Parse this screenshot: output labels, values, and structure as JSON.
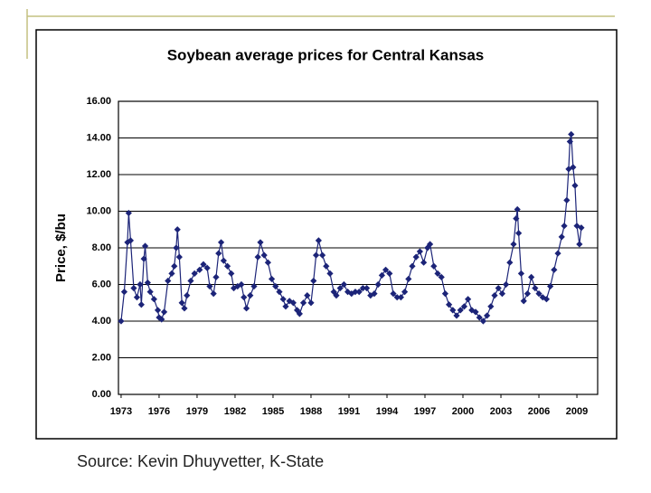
{
  "chart_data": {
    "type": "line",
    "title": "Soybean average prices for Central Kansas",
    "y_label": "Price, $/bu",
    "color": "#1c2478",
    "marker": "diamond",
    "grid": true,
    "x": [
      1973.0,
      1973.25,
      1973.5,
      1973.6,
      1973.75,
      1974.0,
      1974.25,
      1974.5,
      1974.6,
      1974.8,
      1974.9,
      1975.1,
      1975.3,
      1975.6,
      1975.9,
      1976.0,
      1976.2,
      1976.4,
      1976.7,
      1977.0,
      1977.2,
      1977.35,
      1977.45,
      1977.6,
      1977.8,
      1978.0,
      1978.2,
      1978.5,
      1978.8,
      1979.2,
      1979.5,
      1979.8,
      1980.0,
      1980.3,
      1980.5,
      1980.7,
      1980.9,
      1981.1,
      1981.4,
      1981.7,
      1981.9,
      1982.2,
      1982.5,
      1982.7,
      1982.9,
      1983.2,
      1983.5,
      1983.8,
      1984.0,
      1984.3,
      1984.6,
      1984.9,
      1985.2,
      1985.5,
      1985.8,
      1986.0,
      1986.3,
      1986.6,
      1986.9,
      1987.1,
      1987.4,
      1987.7,
      1988.0,
      1988.2,
      1988.4,
      1988.6,
      1988.9,
      1989.2,
      1989.5,
      1989.8,
      1990.0,
      1990.3,
      1990.6,
      1990.9,
      1991.2,
      1991.5,
      1991.8,
      1992.1,
      1992.4,
      1992.7,
      1993.0,
      1993.3,
      1993.6,
      1993.9,
      1994.2,
      1994.5,
      1994.8,
      1995.1,
      1995.4,
      1995.7,
      1996.0,
      1996.3,
      1996.6,
      1996.9,
      1997.2,
      1997.4,
      1997.7,
      1998.0,
      1998.3,
      1998.6,
      1998.9,
      1999.2,
      1999.5,
      1999.8,
      2000.1,
      2000.4,
      2000.7,
      2001.0,
      2001.3,
      2001.6,
      2001.9,
      2002.2,
      2002.5,
      2002.8,
      2003.1,
      2003.4,
      2003.7,
      2004.0,
      2004.2,
      2004.3,
      2004.4,
      2004.6,
      2004.8,
      2005.1,
      2005.4,
      2005.7,
      2006.0,
      2006.3,
      2006.6,
      2006.9,
      2007.2,
      2007.5,
      2007.8,
      2008.0,
      2008.2,
      2008.35,
      2008.45,
      2008.55,
      2008.7,
      2008.85,
      2009.0,
      2009.2,
      2009.35
    ],
    "values": [
      4.0,
      5.6,
      8.3,
      9.9,
      8.4,
      5.8,
      5.3,
      6.0,
      4.9,
      7.4,
      8.1,
      6.1,
      5.6,
      5.2,
      4.6,
      4.2,
      4.1,
      4.5,
      6.2,
      6.6,
      7.0,
      8.0,
      9.0,
      7.5,
      5.0,
      4.7,
      5.4,
      6.2,
      6.6,
      6.8,
      7.1,
      6.9,
      5.9,
      5.5,
      6.4,
      7.7,
      8.3,
      7.3,
      7.0,
      6.6,
      5.8,
      5.9,
      6.0,
      5.3,
      4.7,
      5.4,
      5.9,
      7.5,
      8.3,
      7.6,
      7.2,
      6.3,
      5.9,
      5.6,
      5.2,
      4.8,
      5.1,
      5.0,
      4.6,
      4.4,
      5.0,
      5.4,
      5.0,
      6.2,
      7.6,
      8.4,
      7.6,
      7.0,
      6.6,
      5.6,
      5.4,
      5.8,
      6.0,
      5.6,
      5.5,
      5.6,
      5.6,
      5.8,
      5.8,
      5.4,
      5.5,
      6.0,
      6.5,
      6.8,
      6.6,
      5.5,
      5.3,
      5.3,
      5.6,
      6.3,
      7.0,
      7.5,
      7.8,
      7.2,
      8.0,
      8.2,
      7.0,
      6.6,
      6.4,
      5.5,
      4.9,
      4.6,
      4.3,
      4.6,
      4.8,
      5.2,
      4.6,
      4.5,
      4.2,
      4.0,
      4.3,
      4.8,
      5.4,
      5.8,
      5.5,
      6.0,
      7.2,
      8.2,
      9.6,
      10.1,
      8.8,
      6.6,
      5.1,
      5.5,
      6.4,
      5.8,
      5.5,
      5.3,
      5.2,
      5.9,
      6.8,
      7.7,
      8.6,
      9.2,
      10.6,
      12.3,
      13.8,
      14.2,
      12.4,
      11.4,
      9.2,
      8.2,
      9.1
    ],
    "xlim": [
      1972.79,
      2010.64
    ],
    "xticks": [
      1973,
      1976,
      1979,
      1982,
      1985,
      1988,
      1991,
      1994,
      1997,
      2000,
      2003,
      2006,
      2009
    ],
    "ylim": [
      0,
      16
    ],
    "yticks": [
      {
        "value": 0,
        "label": "0.00"
      },
      {
        "value": 2,
        "label": "2.00"
      },
      {
        "value": 4,
        "label": "4.00"
      },
      {
        "value": 6,
        "label": "6.00"
      },
      {
        "value": 8,
        "label": "8.00"
      },
      {
        "value": 10,
        "label": "10.00"
      },
      {
        "value": 12,
        "label": "12.00"
      },
      {
        "value": 14,
        "label": "14.00"
      },
      {
        "value": 16,
        "label": "16.00"
      }
    ]
  },
  "footer": "Source: Kevin Dhuyvetter, K-State"
}
